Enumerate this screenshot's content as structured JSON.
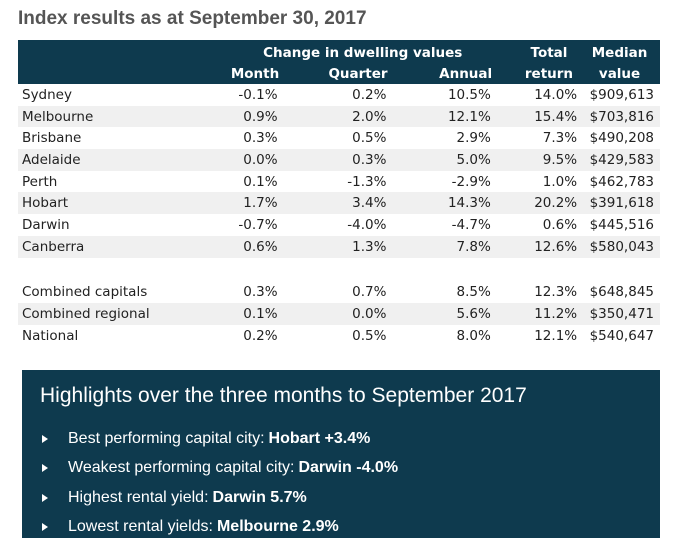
{
  "title": "Index results as at September 30, 2017",
  "table": {
    "group_header": "Change in dwelling values",
    "columns": {
      "month": "Month",
      "quarter": "Quarter",
      "annual": "Annual",
      "total_top": "Total",
      "total_bottom": "return",
      "median_top": "Median",
      "median_bottom": "value"
    },
    "rows": [
      {
        "name": "Sydney",
        "month": "-0.1%",
        "quarter": "0.2%",
        "annual": "10.5%",
        "total": "14.0%",
        "median": "$909,613"
      },
      {
        "name": "Melbourne",
        "month": "0.9%",
        "quarter": "2.0%",
        "annual": "12.1%",
        "total": "15.4%",
        "median": "$703,816"
      },
      {
        "name": "Brisbane",
        "month": "0.3%",
        "quarter": "0.5%",
        "annual": "2.9%",
        "total": "7.3%",
        "median": "$490,208"
      },
      {
        "name": "Adelaide",
        "month": "0.0%",
        "quarter": "0.3%",
        "annual": "5.0%",
        "total": "9.5%",
        "median": "$429,583"
      },
      {
        "name": "Perth",
        "month": "0.1%",
        "quarter": "-1.3%",
        "annual": "-2.9%",
        "total": "1.0%",
        "median": "$462,783"
      },
      {
        "name": "Hobart",
        "month": "1.7%",
        "quarter": "3.4%",
        "annual": "14.3%",
        "total": "20.2%",
        "median": "$391,618"
      },
      {
        "name": "Darwin",
        "month": "-0.7%",
        "quarter": "-4.0%",
        "annual": "-4.7%",
        "total": "0.6%",
        "median": "$445,516"
      },
      {
        "name": "Canberra",
        "month": "0.6%",
        "quarter": "1.3%",
        "annual": "7.8%",
        "total": "12.6%",
        "median": "$580,043"
      }
    ],
    "summary_rows": [
      {
        "name": "Combined capitals",
        "month": "0.3%",
        "quarter": "0.7%",
        "annual": "8.5%",
        "total": "12.3%",
        "median": "$648,845"
      },
      {
        "name": "Combined regional",
        "month": "0.1%",
        "quarter": "0.0%",
        "annual": "5.6%",
        "total": "11.2%",
        "median": "$350,471"
      },
      {
        "name": "National",
        "month": "0.2%",
        "quarter": "0.5%",
        "annual": "8.0%",
        "total": "12.1%",
        "median": "$540,647"
      }
    ]
  },
  "highlights": {
    "title": "Highlights over the three months to September 2017",
    "items": [
      {
        "label": "Best performing capital city:",
        "value": "Hobart +3.4%"
      },
      {
        "label": "Weakest performing capital city:",
        "value": "Darwin -4.0%"
      },
      {
        "label": "Highest rental yield:",
        "value": "Darwin 5.7%"
      },
      {
        "label": "Lowest rental yields:",
        "value": "Melbourne 2.9%"
      }
    ]
  },
  "colors": {
    "header_bg": "#0e3a4e",
    "row_alt_bg": "#f0f0f0",
    "title_text": "#555555"
  }
}
